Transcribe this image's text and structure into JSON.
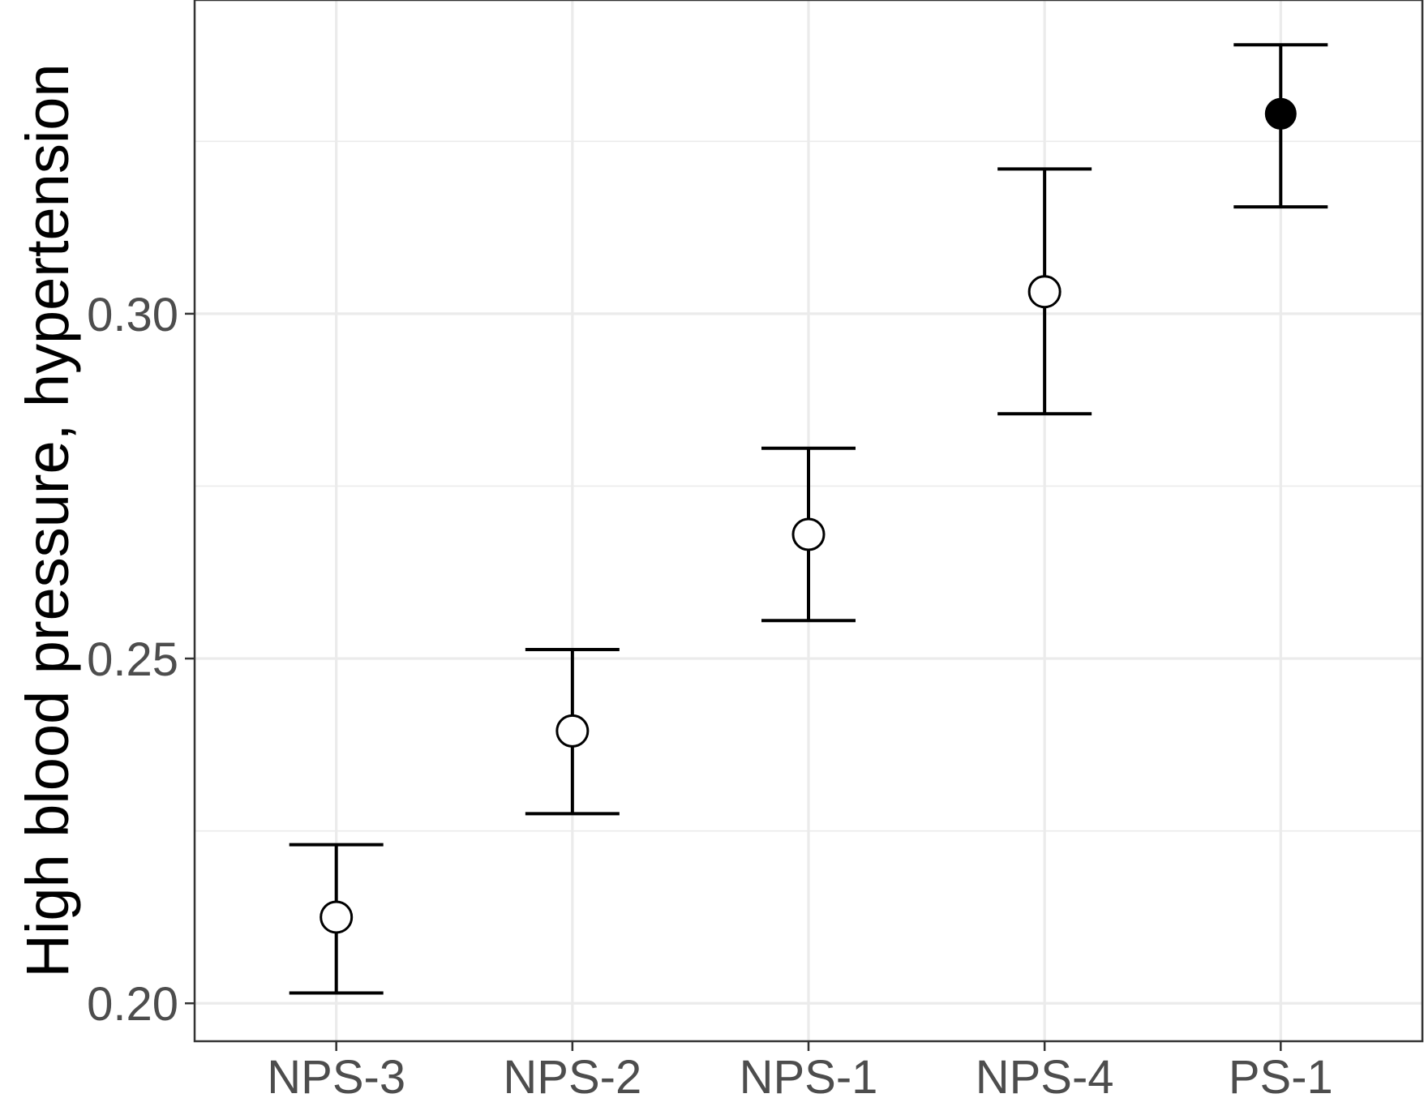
{
  "chart_data": {
    "type": "scatter",
    "ylabel": "High blood pressure, hypertension",
    "xlabel": "",
    "categories": [
      "NPS-3",
      "NPS-2",
      "NPS-1",
      "NPS-4",
      "PS-1"
    ],
    "values": [
      0.2125,
      0.2395,
      0.268,
      0.3032,
      0.329
    ],
    "lower": [
      0.2015,
      0.2275,
      0.2555,
      0.2855,
      0.3155
    ],
    "upper": [
      0.223,
      0.2513,
      0.2805,
      0.321,
      0.339
    ],
    "filled": [
      false,
      false,
      false,
      false,
      true
    ],
    "ylim": [
      0.1945,
      0.3455
    ],
    "yticks": [
      0.2,
      0.25,
      0.3
    ],
    "ytick_labels": [
      "0.20",
      "0.25",
      "0.30"
    ],
    "grid": true,
    "legend": "none",
    "colors": {
      "point": "#000000",
      "grid": "#ebebeb",
      "tick_text": "#4d4d4d"
    }
  }
}
